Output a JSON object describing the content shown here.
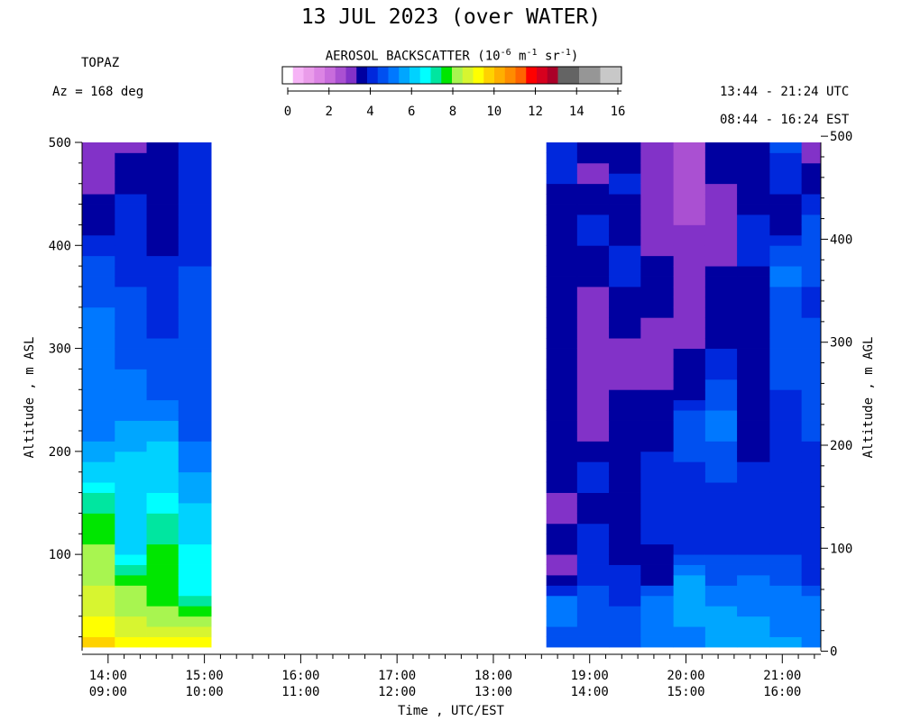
{
  "header": {
    "title": "13 JUL 2023 (over WATER)",
    "site": "TOPAZ",
    "azimuth": "Az = 168 deg",
    "utc_range": "13:44 - 21:24 UTC",
    "est_range": "08:44 - 16:24 EST"
  },
  "colorbar": {
    "title_main": "AEROSOL BACKSCATTER (10",
    "title_exp1": "-6",
    "title_mid1": " m",
    "title_exp2": "-1",
    "title_mid2": " sr",
    "title_exp3": "-1",
    "title_end": ")",
    "ticks": [
      "0",
      "2",
      "4",
      "6",
      "8",
      "10",
      "12",
      "14",
      "16"
    ],
    "colors": [
      "#ffffff",
      "#f6b4f6",
      "#ea9cea",
      "#dc84e4",
      "#c86cdc",
      "#aa50d2",
      "#8232c8",
      "#0000a0",
      "#0028dc",
      "#0050f0",
      "#0078ff",
      "#00a6ff",
      "#00d2ff",
      "#00ffff",
      "#00e6a0",
      "#00e600",
      "#a8f550",
      "#d7f530",
      "#ffff00",
      "#ffd200",
      "#ffaf00",
      "#ff8c00",
      "#ff6400",
      "#ff0000",
      "#d7001e",
      "#aa0028",
      "#646464",
      "#646464",
      "#969696",
      "#969696",
      "#c8c8c8",
      "#c8c8c8"
    ]
  },
  "axes": {
    "left_label": "Altitude , m ASL",
    "right_label": "Altitude , m AGL",
    "x_label": "Time , UTC/EST",
    "left_ticks": [
      "100",
      "200",
      "300",
      "400",
      "500"
    ],
    "right_ticks": [
      "0",
      "100",
      "200",
      "300",
      "400",
      "500"
    ],
    "x_ticks": [
      {
        "utc": "14:00",
        "est": "09:00"
      },
      {
        "utc": "15:00",
        "est": "10:00"
      },
      {
        "utc": "16:00",
        "est": "11:00"
      },
      {
        "utc": "17:00",
        "est": "12:00"
      },
      {
        "utc": "18:00",
        "est": "13:00"
      },
      {
        "utc": "19:00",
        "est": "14:00"
      },
      {
        "utc": "20:00",
        "est": "15:00"
      },
      {
        "utc": "21:00",
        "est": "16:00"
      }
    ]
  },
  "chart_data": {
    "type": "heatmap",
    "title": "13 JUL 2023 (over WATER)",
    "xlabel": "Time , UTC/EST",
    "ylabel": "Altitude , m ASL",
    "ylabel_right": "Altitude , m AGL",
    "x_units": "hours UTC",
    "xlim": [
      13.73,
      21.4
    ],
    "ylim": [
      10,
      500
    ],
    "value_label": "AEROSOL BACKSCATTER (10^-6 m^-1 sr^-1)",
    "value_range": [
      0,
      16
    ],
    "columns": [
      {
        "t0": 13.73,
        "t1": 14.07,
        "profile": [
          [
            20,
            9.5
          ],
          [
            40,
            9.0
          ],
          [
            70,
            8.5
          ],
          [
            90,
            8.0
          ],
          [
            110,
            8.0
          ],
          [
            140,
            7.5
          ],
          [
            170,
            6.5
          ],
          [
            190,
            6.0
          ],
          [
            210,
            5.5
          ],
          [
            230,
            5.2
          ],
          [
            260,
            5.2
          ],
          [
            300,
            5.0
          ],
          [
            340,
            5.0
          ],
          [
            370,
            4.8
          ],
          [
            400,
            4.2
          ],
          [
            430,
            3.7
          ],
          [
            460,
            3.4
          ],
          [
            500,
            3.1
          ]
        ]
      },
      {
        "t0": 14.07,
        "t1": 14.4,
        "profile": [
          [
            20,
            9.0
          ],
          [
            40,
            8.5
          ],
          [
            70,
            8.0
          ],
          [
            100,
            6.5
          ],
          [
            130,
            6.3
          ],
          [
            160,
            6.3
          ],
          [
            200,
            6.0
          ],
          [
            230,
            5.5
          ],
          [
            270,
            5.2
          ],
          [
            300,
            4.7
          ],
          [
            340,
            4.7
          ],
          [
            380,
            4.3
          ],
          [
            420,
            4.2
          ],
          [
            460,
            3.9
          ],
          [
            500,
            3.3
          ]
        ]
      },
      {
        "t0": 14.4,
        "t1": 14.73,
        "profile": [
          [
            20,
            9.0
          ],
          [
            40,
            8.3
          ],
          [
            60,
            7.5
          ],
          [
            110,
            7.5
          ],
          [
            160,
            6.5
          ],
          [
            210,
            6.0
          ],
          [
            250,
            5.0
          ],
          [
            300,
            4.6
          ],
          [
            340,
            4.1
          ],
          [
            380,
            4.1
          ],
          [
            420,
            3.8
          ],
          [
            460,
            3.7
          ],
          [
            500,
            3.6
          ]
        ]
      },
      {
        "t0": 14.73,
        "t1": 15.07,
        "profile": [
          [
            20,
            9.0
          ],
          [
            40,
            8.0
          ],
          [
            60,
            6.9
          ],
          [
            100,
            6.6
          ],
          [
            140,
            6.2
          ],
          [
            180,
            5.4
          ],
          [
            220,
            4.9
          ],
          [
            260,
            4.5
          ],
          [
            300,
            4.8
          ],
          [
            340,
            4.8
          ],
          [
            380,
            4.5
          ],
          [
            420,
            4.3
          ],
          [
            460,
            4.3
          ],
          [
            500,
            4.3
          ]
        ]
      },
      {
        "t0": 18.55,
        "t1": 18.87,
        "profile": [
          [
            20,
            4.8
          ],
          [
            50,
            5.5
          ],
          [
            80,
            3.2
          ],
          [
            110,
            3.6
          ],
          [
            140,
            3.4
          ],
          [
            180,
            3.6
          ],
          [
            220,
            3.5
          ],
          [
            260,
            3.6
          ],
          [
            300,
            3.6
          ],
          [
            340,
            3.8
          ],
          [
            380,
            4.0
          ],
          [
            420,
            3.5
          ],
          [
            460,
            4.0
          ],
          [
            500,
            4.0
          ]
        ]
      },
      {
        "t0": 18.87,
        "t1": 19.2,
        "profile": [
          [
            20,
            4.8
          ],
          [
            50,
            5.0
          ],
          [
            80,
            4.1
          ],
          [
            110,
            4.3
          ],
          [
            140,
            3.9
          ],
          [
            180,
            4.1
          ],
          [
            220,
            3.4
          ],
          [
            260,
            3.0
          ],
          [
            300,
            3.5
          ],
          [
            340,
            3.1
          ],
          [
            380,
            3.8
          ],
          [
            420,
            4.2
          ],
          [
            460,
            3.4
          ],
          [
            500,
            3.6
          ]
        ]
      },
      {
        "t0": 19.2,
        "t1": 19.53,
        "profile": [
          [
            20,
            4.8
          ],
          [
            50,
            4.5
          ],
          [
            80,
            4.2
          ],
          [
            110,
            3.7
          ],
          [
            140,
            3.7
          ],
          [
            180,
            4.0
          ],
          [
            220,
            3.9
          ],
          [
            260,
            3.5
          ],
          [
            300,
            3.4
          ],
          [
            340,
            3.8
          ],
          [
            380,
            4.3
          ],
          [
            420,
            3.7
          ],
          [
            460,
            4.1
          ],
          [
            500,
            3.6
          ]
        ]
      },
      {
        "t0": 19.53,
        "t1": 19.87,
        "profile": [
          [
            20,
            5.2
          ],
          [
            50,
            5.5
          ],
          [
            80,
            3.5
          ],
          [
            110,
            4.0
          ],
          [
            140,
            4.4
          ],
          [
            180,
            4.5
          ],
          [
            220,
            3.6
          ],
          [
            260,
            3.5
          ],
          [
            300,
            3.2
          ],
          [
            340,
            3.6
          ],
          [
            380,
            3.6
          ],
          [
            420,
            3.2
          ],
          [
            460,
            3.1
          ],
          [
            500,
            3.1
          ]
        ]
      },
      {
        "t0": 19.87,
        "t1": 20.2,
        "profile": [
          [
            20,
            5.4
          ],
          [
            50,
            5.6
          ],
          [
            80,
            5.5
          ],
          [
            110,
            4.1
          ],
          [
            140,
            4.3
          ],
          [
            180,
            4.3
          ],
          [
            220,
            5.0
          ],
          [
            260,
            3.7
          ],
          [
            300,
            3.5
          ],
          [
            340,
            3.3
          ],
          [
            380,
            3.3
          ],
          [
            420,
            3.0
          ],
          [
            460,
            2.8
          ],
          [
            500,
            2.6
          ]
        ]
      },
      {
        "t0": 20.2,
        "t1": 20.53,
        "profile": [
          [
            20,
            5.5
          ],
          [
            50,
            5.5
          ],
          [
            80,
            4.8
          ],
          [
            110,
            4.2
          ],
          [
            140,
            4.3
          ],
          [
            180,
            4.6
          ],
          [
            220,
            5.2
          ],
          [
            260,
            4.7
          ],
          [
            300,
            3.9
          ],
          [
            340,
            4.0
          ],
          [
            380,
            3.5
          ],
          [
            420,
            3.3
          ],
          [
            460,
            3.5
          ],
          [
            500,
            3.5
          ]
        ]
      },
      {
        "t0": 20.53,
        "t1": 20.87,
        "profile": [
          [
            20,
            5.7
          ],
          [
            50,
            5.4
          ],
          [
            80,
            5.0
          ],
          [
            110,
            4.2
          ],
          [
            140,
            4.5
          ],
          [
            180,
            4.1
          ],
          [
            220,
            3.8
          ],
          [
            260,
            3.8
          ],
          [
            300,
            4.0
          ],
          [
            340,
            3.9
          ],
          [
            380,
            4.0
          ],
          [
            420,
            4.1
          ],
          [
            460,
            3.8
          ],
          [
            500,
            3.7
          ]
        ]
      },
      {
        "t0": 20.87,
        "t1": 21.2,
        "profile": [
          [
            20,
            5.5
          ],
          [
            50,
            5.3
          ],
          [
            80,
            4.7
          ],
          [
            110,
            4.4
          ],
          [
            140,
            4.3
          ],
          [
            180,
            4.0
          ],
          [
            220,
            4.4
          ],
          [
            260,
            4.5
          ],
          [
            300,
            4.6
          ],
          [
            340,
            4.9
          ],
          [
            380,
            5.1
          ],
          [
            420,
            3.8
          ],
          [
            460,
            4.1
          ],
          [
            500,
            4.6
          ]
        ]
      },
      {
        "t0": 21.2,
        "t1": 21.4,
        "profile": [
          [
            20,
            5.4
          ],
          [
            50,
            5.2
          ],
          [
            80,
            4.2
          ],
          [
            110,
            4.4
          ],
          [
            140,
            4.2
          ],
          [
            180,
            4.1
          ],
          [
            220,
            4.7
          ],
          [
            260,
            4.7
          ],
          [
            300,
            4.7
          ],
          [
            340,
            4.4
          ],
          [
            380,
            4.6
          ],
          [
            420,
            4.6
          ],
          [
            460,
            3.8
          ],
          [
            500,
            3.3
          ]
        ]
      }
    ]
  }
}
